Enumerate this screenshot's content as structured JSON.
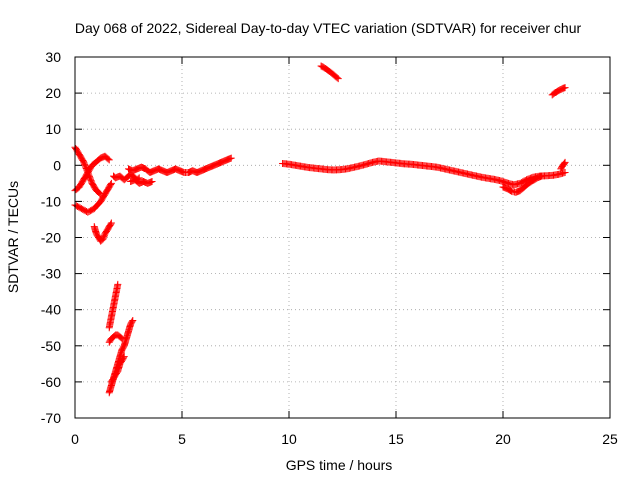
{
  "chart_data": {
    "type": "scatter",
    "title": "Day 068 of 2022, Sidereal Day-to-day VTEC variation (SDTVAR) for receiver chur",
    "xlabel": "GPS time / hours",
    "ylabel": "SDTVAR / TECUs",
    "xlim": [
      0,
      25
    ],
    "ylim": [
      -70,
      30
    ],
    "xticks": [
      0,
      5,
      10,
      15,
      20,
      25
    ],
    "yticks": [
      -70,
      -60,
      -50,
      -40,
      -30,
      -20,
      -10,
      0,
      10,
      20,
      30
    ],
    "grid": true,
    "marker": "+",
    "marker_color": "#ff0000",
    "series": [
      {
        "name": "SDTVAR",
        "segments": [
          {
            "x": [
              0.0,
              0.2,
              0.4,
              0.6,
              0.8,
              1.0,
              1.2
            ],
            "y": [
              5,
              3,
              1,
              -2,
              -5,
              -7,
              -8
            ]
          },
          {
            "x": [
              0.0,
              0.2,
              0.4,
              0.6,
              0.8,
              1.0,
              1.2,
              1.4,
              1.6
            ],
            "y": [
              -7,
              -6,
              -4,
              -2,
              0,
              1,
              2,
              2.5,
              1.5
            ]
          },
          {
            "x": [
              0.0,
              0.3,
              0.6,
              0.9,
              1.2,
              1.4,
              1.6,
              1.7
            ],
            "y": [
              -11,
              -12,
              -13,
              -12,
              -10,
              -8,
              -6,
              -5
            ]
          },
          {
            "x": [
              0.9,
              1.0,
              1.1,
              1.2,
              1.3,
              1.4,
              1.5,
              1.6,
              1.7
            ],
            "y": [
              -17,
              -19,
              -20,
              -21,
              -20.5,
              -19,
              -18,
              -17,
              -16
            ]
          },
          {
            "x": [
              1.6,
              1.7,
              1.8,
              1.9,
              2.0
            ],
            "y": [
              -45,
              -42,
              -39,
              -36,
              -33
            ]
          },
          {
            "x": [
              1.6,
              1.7,
              1.8,
              1.9,
              2.0,
              2.1,
              2.2
            ],
            "y": [
              -49,
              -48,
              -47.5,
              -47,
              -47,
              -47.5,
              -48
            ]
          },
          {
            "x": [
              1.6,
              1.7,
              1.8,
              1.9,
              2.0,
              2.1,
              2.2,
              2.3,
              2.4,
              2.5,
              2.6,
              2.7
            ],
            "y": [
              -63,
              -61,
              -59,
              -57,
              -55,
              -53,
              -51,
              -50,
              -48,
              -46,
              -44,
              -43
            ]
          },
          {
            "x": [
              1.7,
              1.8,
              1.9,
              2.0,
              2.1,
              2.2,
              2.3
            ],
            "y": [
              -60,
              -59,
              -58,
              -57,
              -55,
              -54,
              -53
            ]
          },
          {
            "x": [
              1.8,
              1.9,
              2.0,
              2.1,
              2.2,
              2.3,
              2.4,
              2.5,
              2.6,
              2.7,
              2.8,
              2.9,
              3.0
            ],
            "y": [
              -3,
              -3.5,
              -3.2,
              -3.0,
              -3.5,
              -4.0,
              -3.5,
              -3.0,
              -2.5,
              -3.0,
              -3.5,
              -4.0,
              -3.5
            ]
          },
          {
            "x": [
              2.5,
              2.7,
              2.9,
              3.1,
              3.3,
              3.5,
              3.7,
              3.9,
              4.1,
              4.3,
              4.5,
              4.7,
              4.9,
              5.1,
              5.3,
              5.5,
              5.7,
              5.9,
              6.1,
              6.3,
              6.5,
              6.7,
              6.9,
              7.1,
              7.3
            ],
            "y": [
              -1,
              -1.5,
              -1,
              -0.5,
              -1,
              -2,
              -1.5,
              -1,
              -1.5,
              -2,
              -1.5,
              -1,
              -1.5,
              -2,
              -2,
              -1.5,
              -2,
              -1.5,
              -1,
              -0.5,
              0,
              0.5,
              1,
              1.5,
              2
            ]
          },
          {
            "x": [
              2.6,
              2.8,
              3.0,
              3.2,
              3.4,
              3.6
            ],
            "y": [
              -4.5,
              -4.0,
              -5.0,
              -4.5,
              -5.0,
              -4.5
            ]
          },
          {
            "x": [
              9.7,
              10.0,
              10.3,
              10.6,
              10.9,
              11.2,
              11.5,
              11.8,
              12.1,
              12.4,
              12.7,
              13.0,
              13.3,
              13.6,
              13.9,
              14.2,
              14.5,
              14.8,
              15.1,
              15.4,
              15.7,
              16.0,
              16.3,
              16.6,
              16.9,
              17.2,
              17.5,
              17.8,
              18.1,
              18.4,
              18.7,
              19.0,
              19.3,
              19.6,
              19.9,
              20.2,
              20.5,
              20.8,
              21.1,
              21.4,
              21.7,
              22.0,
              22.3,
              22.6,
              22.9
            ],
            "y": [
              0.5,
              0.3,
              0.0,
              -0.3,
              -0.6,
              -0.8,
              -1.0,
              -1.2,
              -1.3,
              -1.2,
              -1.0,
              -0.6,
              -0.2,
              0.3,
              0.8,
              1.2,
              1.0,
              0.8,
              0.6,
              0.4,
              0.3,
              0.1,
              -0.1,
              -0.3,
              -0.5,
              -0.9,
              -1.3,
              -1.7,
              -2.1,
              -2.5,
              -2.9,
              -3.3,
              -3.6,
              -3.9,
              -4.3,
              -4.9,
              -5.4,
              -5.0,
              -4.0,
              -3.3,
              -3.0,
              -2.9,
              -2.8,
              -2.5,
              -2.0
            ]
          },
          {
            "x": [
              20.0,
              20.2,
              20.4,
              20.6,
              20.8,
              21.0,
              21.2,
              21.4,
              21.6,
              21.8
            ],
            "y": [
              -6.0,
              -6.5,
              -7.2,
              -7.5,
              -7.0,
              -6.0,
              -5.0,
              -4.2,
              -3.5,
              -3.0
            ]
          },
          {
            "x": [
              22.7,
              22.8,
              22.9
            ],
            "y": [
              -1.0,
              0.0,
              0.8
            ]
          },
          {
            "x": [
              11.5,
              11.6,
              11.7,
              11.8,
              11.9,
              12.0,
              12.1,
              12.2,
              12.3
            ],
            "y": [
              27.5,
              27.2,
              26.8,
              26.4,
              26.0,
              25.5,
              25.0,
              24.5,
              24.0
            ]
          },
          {
            "x": [
              22.3,
              22.4,
              22.5,
              22.6,
              22.7,
              22.8,
              22.9
            ],
            "y": [
              19.5,
              20.0,
              20.3,
              20.7,
              21.0,
              21.3,
              21.5
            ]
          }
        ]
      }
    ]
  }
}
